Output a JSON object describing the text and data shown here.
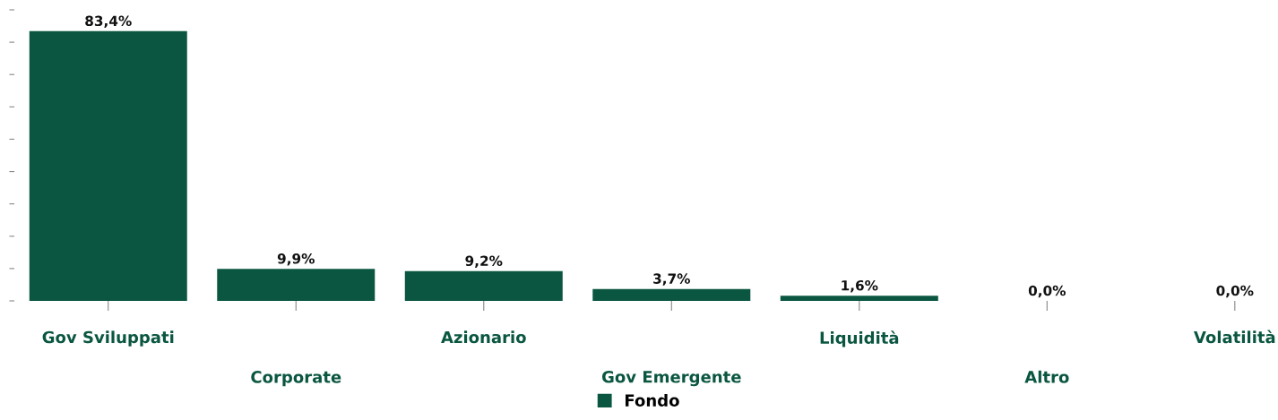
{
  "chart_data": {
    "type": "bar",
    "categories": [
      "Gov Sviluppati",
      "Corporate",
      "Azionario",
      "Gov Emergente",
      "Liquidità",
      "Altro",
      "Volatilità"
    ],
    "series": [
      {
        "name": "Fondo",
        "color": "#0a5640",
        "values": [
          83.4,
          9.9,
          9.2,
          3.7,
          1.6,
          0.0,
          0.0
        ],
        "value_labels": [
          "83,4%",
          "9,9%",
          "9,2%",
          "3,7%",
          "1,6%",
          "0,0%",
          "0,0%"
        ]
      }
    ],
    "yticks": [
      {
        "value": 0,
        "label": null
      },
      {
        "value": 10,
        "label": null
      },
      {
        "value": 20,
        "label": null
      },
      {
        "value": 30,
        "label": null
      },
      {
        "value": 40,
        "label": null
      },
      {
        "value": 50,
        "label": null
      },
      {
        "value": 60,
        "label": null
      },
      {
        "value": 70,
        "label": null
      },
      {
        "value": 80,
        "label": null
      },
      {
        "value": 90,
        "label": null
      }
    ],
    "grid": false,
    "legend": "bottom",
    "tick_labels": "x"
  }
}
